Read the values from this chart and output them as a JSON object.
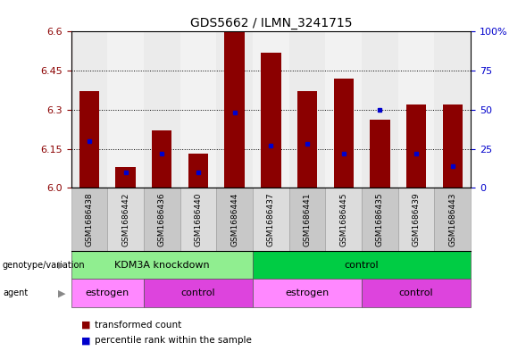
{
  "title": "GDS5662 / ILMN_3241715",
  "samples": [
    "GSM1686438",
    "GSM1686442",
    "GSM1686436",
    "GSM1686440",
    "GSM1686444",
    "GSM1686437",
    "GSM1686441",
    "GSM1686445",
    "GSM1686435",
    "GSM1686439",
    "GSM1686443"
  ],
  "transformed_counts": [
    6.37,
    6.08,
    6.22,
    6.13,
    6.6,
    6.52,
    6.37,
    6.42,
    6.26,
    6.32,
    6.32
  ],
  "percentile_ranks": [
    30,
    10,
    22,
    10,
    48,
    27,
    28,
    22,
    50,
    22,
    14
  ],
  "ylim": [
    6.0,
    6.6
  ],
  "yticks_left": [
    6.0,
    6.15,
    6.3,
    6.45,
    6.6
  ],
  "yticks_right": [
    0,
    25,
    50,
    75,
    100
  ],
  "bar_color": "#8B0000",
  "dot_color": "#0000CC",
  "col_bg_even": "#C8C8C8",
  "col_bg_odd": "#DCDCDC",
  "bar_bg_color": "#FFFFFF",
  "genotype_groups": [
    {
      "label": "KDM3A knockdown",
      "start": 0,
      "end": 5,
      "color": "#90EE90"
    },
    {
      "label": "control",
      "start": 5,
      "end": 11,
      "color": "#00CC44"
    }
  ],
  "agent_groups": [
    {
      "label": "estrogen",
      "start": 0,
      "end": 2,
      "color": "#FF88FF"
    },
    {
      "label": "control",
      "start": 2,
      "end": 5,
      "color": "#DD44DD"
    },
    {
      "label": "estrogen",
      "start": 5,
      "end": 8,
      "color": "#FF88FF"
    },
    {
      "label": "control",
      "start": 8,
      "end": 11,
      "color": "#DD44DD"
    }
  ]
}
